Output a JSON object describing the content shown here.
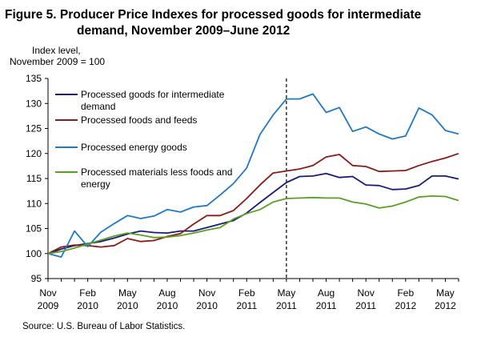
{
  "title_line1": "Figure 5. Producer Price Indexes for processed goods for intermediate",
  "title_line2": "demand, November 2009–June 2012",
  "ylabel_line1": "Index level,",
  "ylabel_line2": "November 2009 = 100",
  "source": "Source:  U.S. Bureau  of Labor Statistics.",
  "chart_data": {
    "type": "line",
    "ylim": [
      95,
      135
    ],
    "yticks": [
      95,
      100,
      105,
      110,
      115,
      120,
      125,
      130,
      135
    ],
    "x_range": [
      "2009-11",
      "2012-06"
    ],
    "xtick_labels": [
      {
        "month": "Nov",
        "year": "2009",
        "date": "2009-11"
      },
      {
        "month": "Feb",
        "year": "2010",
        "date": "2010-02"
      },
      {
        "month": "May",
        "year": "2010",
        "date": "2010-05"
      },
      {
        "month": "Aug",
        "year": "2010",
        "date": "2010-08"
      },
      {
        "month": "Nov",
        "year": "2010",
        "date": "2010-11"
      },
      {
        "month": "Feb",
        "year": "2011",
        "date": "2011-02"
      },
      {
        "month": "May",
        "year": "2011",
        "date": "2011-05"
      },
      {
        "month": "Aug",
        "year": "2011",
        "date": "2011-08"
      },
      {
        "month": "Nov",
        "year": "2011",
        "date": "2011-11"
      },
      {
        "month": "Feb",
        "year": "2012",
        "date": "2012-02"
      },
      {
        "month": "May",
        "year": "2012",
        "date": "2012-05"
      }
    ],
    "reference_line_date": "2011-05",
    "grid": false,
    "legend_position": "top-left",
    "x": [
      "2009-11",
      "2009-12",
      "2010-01",
      "2010-02",
      "2010-03",
      "2010-04",
      "2010-05",
      "2010-06",
      "2010-07",
      "2010-08",
      "2010-09",
      "2010-10",
      "2010-11",
      "2010-12",
      "2011-01",
      "2011-02",
      "2011-03",
      "2011-04",
      "2011-05",
      "2011-06",
      "2011-07",
      "2011-08",
      "2011-09",
      "2011-10",
      "2011-11",
      "2011-12",
      "2012-01",
      "2012-02",
      "2012-03",
      "2012-04",
      "2012-05",
      "2012-06"
    ],
    "series": [
      {
        "name": "Processed goods for intermediate demand",
        "color": "#1a1a7a",
        "values": [
          100.0,
          100.9,
          101.6,
          102.0,
          102.4,
          103.1,
          103.9,
          104.5,
          104.2,
          104.1,
          104.5,
          104.5,
          105.2,
          105.9,
          106.6,
          108.1,
          110.2,
          112.2,
          114.2,
          115.4,
          115.5,
          116.0,
          115.2,
          115.4,
          113.7,
          113.6,
          112.8,
          112.9,
          113.6,
          115.5,
          115.5,
          114.9
        ]
      },
      {
        "name": "Processed foods and feeds",
        "color": "#8b1a1a",
        "values": [
          100.0,
          101.3,
          101.7,
          101.6,
          101.3,
          101.6,
          103.0,
          102.4,
          102.6,
          103.4,
          104.0,
          105.9,
          107.6,
          107.6,
          108.6,
          111.0,
          113.7,
          116.1,
          116.5,
          116.9,
          117.6,
          119.3,
          119.8,
          117.6,
          117.4,
          116.4,
          116.5,
          116.6,
          117.6,
          118.4,
          119.1,
          120.0
        ]
      },
      {
        "name": "Processed energy goods",
        "color": "#1f78c8",
        "values": [
          100.0,
          99.3,
          104.5,
          101.4,
          104.3,
          106.0,
          107.6,
          107.0,
          107.5,
          108.8,
          108.3,
          109.3,
          109.6,
          111.7,
          114.0,
          117.1,
          123.8,
          127.7,
          130.9,
          130.9,
          131.9,
          128.2,
          129.2,
          124.4,
          125.3,
          123.9,
          122.9,
          123.5,
          129.1,
          127.7,
          124.6,
          123.9
        ]
      },
      {
        "name": "Processed materials less foods and energy",
        "color": "#5aa020",
        "values": [
          100.0,
          100.4,
          101.1,
          101.9,
          102.7,
          103.5,
          104.1,
          103.7,
          103.2,
          103.3,
          103.6,
          104.1,
          104.7,
          105.2,
          106.9,
          108.0,
          108.8,
          110.3,
          111.0,
          111.1,
          111.2,
          111.1,
          111.1,
          110.3,
          109.9,
          109.1,
          109.5,
          110.3,
          111.3,
          111.5,
          111.4,
          110.6
        ]
      }
    ],
    "legend_entries": [
      {
        "lines": [
          "Processed goods for intermediate",
          "demand"
        ],
        "color": "#1a1a7a"
      },
      {
        "lines": [
          "Processed foods and feeds"
        ],
        "color": "#8b1a1a"
      },
      {
        "lines": [
          "Processed energy goods"
        ],
        "color": "#1f78c8"
      },
      {
        "lines": [
          "Processed materials less foods and",
          "energy"
        ],
        "color": "#5aa020"
      }
    ]
  }
}
